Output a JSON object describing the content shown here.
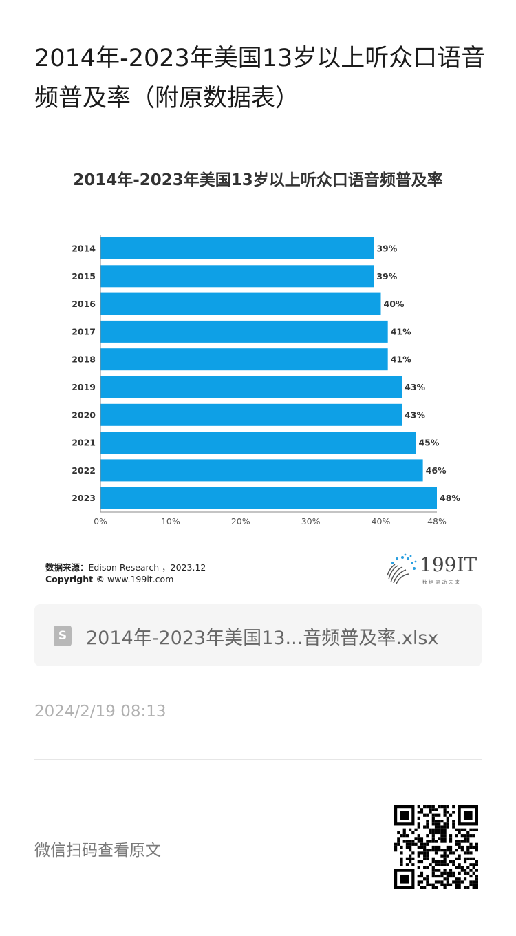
{
  "article": {
    "title": "2014年-2023年美国13岁以上听众口语音频普及率（附原数据表）",
    "timestamp": "2024/2/19 08:13"
  },
  "chart_card": {
    "source_label": "数据来源：",
    "source_text": "Edison Research ，2023.12",
    "copyright_label": "Copyright ©",
    "copyright_text": "www.199it.com",
    "logo_text": "199IT",
    "logo_subtext": "数据驱动未来"
  },
  "chart_data": {
    "type": "bar",
    "orientation": "horizontal",
    "title": "2014年-2023年美国13岁以上听众口语音频普及率",
    "categories": [
      "2014",
      "2015",
      "2016",
      "2017",
      "2018",
      "2019",
      "2020",
      "2021",
      "2022",
      "2023"
    ],
    "values": [
      39,
      39,
      40,
      41,
      41,
      43,
      43,
      45,
      46,
      48
    ],
    "data_labels": [
      "39%",
      "39%",
      "40%",
      "41%",
      "41%",
      "43%",
      "43%",
      "45%",
      "46%",
      "48%"
    ],
    "x_ticks": [
      "0%",
      "10%",
      "20%",
      "30%",
      "40%",
      "48%"
    ],
    "x_tick_values": [
      0,
      10,
      20,
      30,
      40,
      48
    ],
    "xlim": [
      0,
      48
    ],
    "bar_color": "#0ea0e6",
    "grid": false,
    "legend": "none"
  },
  "attachment": {
    "file_name": "2014年-2023年美国13...音频普及率.xlsx",
    "icon": "spreadsheet-file-icon",
    "icon_letter": "S"
  },
  "footer": {
    "qr_hint": "微信扫码查看原文",
    "qr_icon": "qr-code-icon"
  }
}
